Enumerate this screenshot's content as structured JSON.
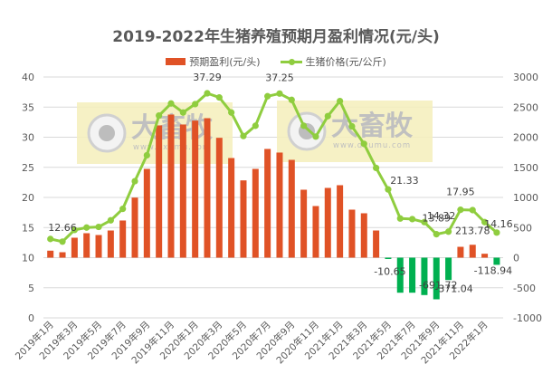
{
  "chart_data": {
    "type": "bar+line",
    "title": "2019-2022年生猪养殖预期月盈利情况(元/头)",
    "legend_position": "top",
    "grid": true,
    "x": [
      "2019年1月",
      "2019年2月",
      "2019年3月",
      "2019年4月",
      "2019年5月",
      "2019年6月",
      "2019年7月",
      "2019年8月",
      "2019年9月",
      "2019年10月",
      "2019年11月",
      "2019年12月",
      "2020年1月",
      "2020年2月",
      "2020年3月",
      "2020年4月",
      "2020年5月",
      "2020年6月",
      "2020年7月",
      "2020年8月",
      "2020年9月",
      "2020年10月",
      "2020年11月",
      "2020年12月",
      "2021年1月",
      "2021年2月",
      "2021年3月",
      "2021年4月",
      "2021年5月",
      "2021年6月",
      "2021年7月",
      "2021年8月",
      "2021年9月",
      "2021年10月",
      "2021年11月",
      "2021年12月",
      "2022年1月",
      "2022年2月"
    ],
    "x_tick_labels": [
      "2019年1月",
      "2019年3月",
      "2019年5月",
      "2019年7月",
      "2019年9月",
      "2019年11月",
      "2020年1月",
      "2020年3月",
      "2020年5月",
      "2020年7月",
      "2020年9月",
      "2020年11月",
      "2021年1月",
      "2021年3月",
      "2021年5月",
      "2021年7月",
      "2021年9月",
      "2021年11月",
      "2022年1月"
    ],
    "series": [
      {
        "name": "预期盈利(元/头)",
        "type": "bar",
        "axis": "right",
        "color_positive": "#e05226",
        "color_negative": "#00b050",
        "values": [
          116,
          90,
          331,
          406,
          376,
          451,
          617,
          997,
          1474,
          2196,
          2376,
          2211,
          2276,
          2316,
          1990,
          1654,
          1283,
          1474,
          1805,
          1745,
          1624,
          1128,
          857,
          1158,
          1203,
          797,
          737,
          451,
          -10.65,
          -582,
          -582,
          -621,
          -691.72,
          -371.04,
          180,
          213.78,
          65,
          -118.94
        ],
        "data_labels": [
          {
            "index": 28,
            "text": "-10.65"
          },
          {
            "index": 32,
            "text": "-691.72"
          },
          {
            "index": 33,
            "text": "-371.04"
          },
          {
            "index": 35,
            "text": "213.78"
          },
          {
            "index": 37,
            "text": "-118.94"
          }
        ]
      },
      {
        "name": "生猪价格(元/公斤)",
        "type": "line",
        "axis": "left",
        "color": "#8fcd3f",
        "values": [
          13.1,
          12.66,
          14.6,
          15.0,
          15.1,
          16.2,
          18.1,
          22.7,
          27.0,
          33.6,
          35.6,
          34.1,
          35.5,
          37.29,
          36.6,
          34.1,
          30.2,
          31.9,
          36.8,
          37.25,
          36.2,
          31.9,
          30.1,
          33.5,
          36.0,
          31.8,
          28.9,
          24.9,
          21.33,
          16.5,
          16.4,
          15.9,
          13.89,
          14.32,
          17.95,
          17.9,
          15.9,
          14.16
        ],
        "data_labels": [
          {
            "index": 1,
            "text": "12.66"
          },
          {
            "index": 13,
            "text": "37.29"
          },
          {
            "index": 19,
            "text": "37.25"
          },
          {
            "index": 28,
            "text": "21.33"
          },
          {
            "index": 32,
            "text": "13.89"
          },
          {
            "index": 33,
            "text": "14.32"
          },
          {
            "index": 34,
            "text": "17.95"
          },
          {
            "index": 37,
            "text": "14.16"
          }
        ]
      }
    ],
    "left_axis": {
      "label": "",
      "min": 0,
      "max": 40,
      "step": 5,
      "ticks": [
        "0",
        "5",
        "10",
        "15",
        "20",
        "25",
        "30",
        "35",
        "40"
      ]
    },
    "right_axis": {
      "label": "",
      "min": -1000,
      "max": 3000,
      "step": 500,
      "ticks": [
        "-1000",
        "-500",
        "0",
        "500",
        "1000",
        "1500",
        "2000",
        "2500",
        "3000"
      ]
    },
    "xlabel": "",
    "ylabel": ""
  },
  "title": "2019-2022年生猪养殖预期月盈利情况(元/头)",
  "legend": {
    "bar_label": "预期盈利(元/头)",
    "line_label": "生猪价格(元/公斤)"
  },
  "watermark": {
    "brand": "大畜牧",
    "url": "www.dxumu.com"
  }
}
